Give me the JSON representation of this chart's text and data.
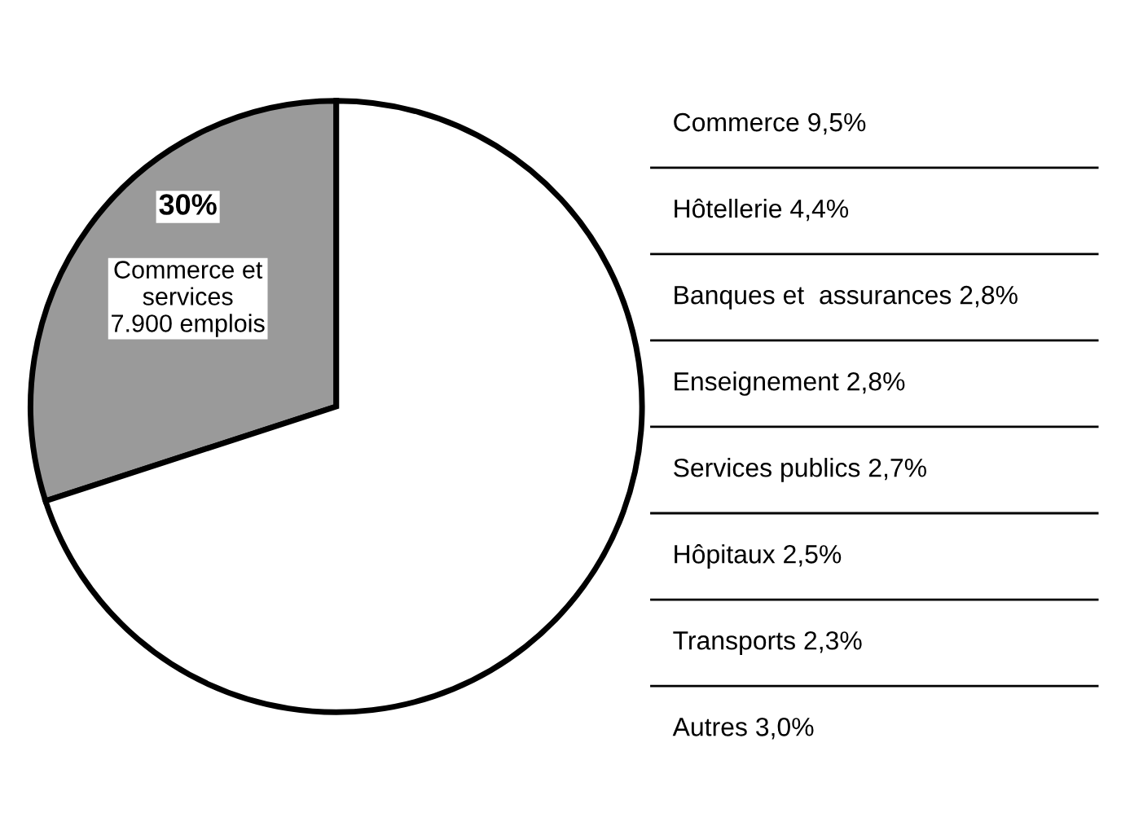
{
  "chart_data": [
    {
      "type": "pie",
      "categories": [
        "Commerce et\nservices\n7.900 emplois",
        null
      ],
      "values": [
        30,
        70
      ],
      "value_labels": [
        "30%",
        null
      ],
      "colors": [
        "#9a9a9a",
        "#ffffff"
      ]
    },
    {
      "type": "other",
      "annotations": [
        "Commerce 9,5%",
        "Hôtellerie 4,4%",
        "Banques et  assurances 2,8%",
        "Enseignement 2,8%",
        "Services publics 2,7%",
        "Hôpitaux 2,5%",
        "Transports 2,3%",
        "Autres 3,0%"
      ]
    }
  ]
}
